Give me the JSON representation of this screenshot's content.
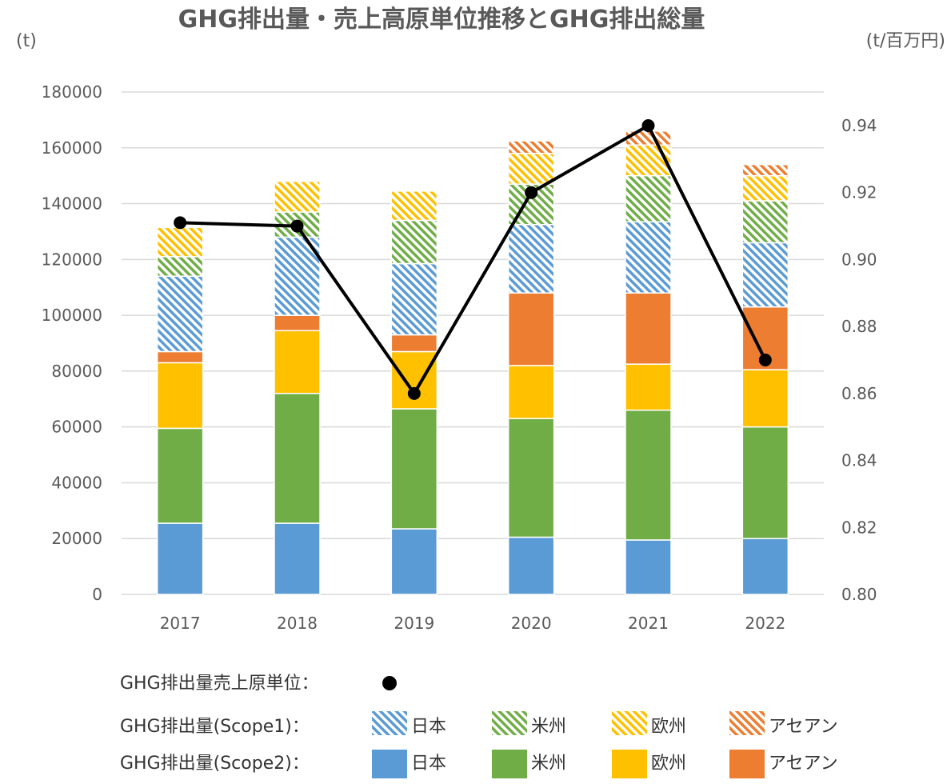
{
  "chart_data": {
    "type": "bar",
    "title": "GHG排出量・売上高原単位推移とGHG排出総量",
    "left_axis_unit": "(t)",
    "right_axis_unit": "(t/百万円)",
    "categories": [
      "2017",
      "2018",
      "2019",
      "2020",
      "2021",
      "2022"
    ],
    "left_ylim": [
      0,
      180000
    ],
    "left_ticks": [
      "0",
      "20000",
      "40000",
      "60000",
      "80000",
      "100000",
      "120000",
      "140000",
      "160000",
      "180000"
    ],
    "right_ylim": [
      0.8,
      0.94
    ],
    "right_ticks": [
      "0.80",
      "0.82",
      "0.84",
      "0.86",
      "0.88",
      "0.90",
      "0.92",
      "0.94"
    ],
    "grid": true,
    "stack_order": [
      "scope2_japan",
      "scope2_americas",
      "scope2_europe",
      "scope2_asean",
      "scope1_japan",
      "scope1_americas",
      "scope1_europe",
      "scope1_asean"
    ],
    "series": [
      {
        "key": "scope2_japan",
        "group": "GHG排出量(Scope2)",
        "name": "日本",
        "color": "#5B9BD5",
        "pattern": "solid",
        "values": [
          25500,
          25500,
          23500,
          20500,
          19500,
          20000
        ]
      },
      {
        "key": "scope2_americas",
        "group": "GHG排出量(Scope2)",
        "name": "米州",
        "color": "#70AD47",
        "pattern": "solid",
        "values": [
          34000,
          46500,
          43000,
          42500,
          46500,
          40000
        ]
      },
      {
        "key": "scope2_europe",
        "group": "GHG排出量(Scope2)",
        "name": "欧州",
        "color": "#FFC000",
        "pattern": "solid",
        "values": [
          23500,
          22500,
          20500,
          19000,
          16500,
          20500
        ]
      },
      {
        "key": "scope2_asean",
        "group": "GHG排出量(Scope2)",
        "name": "アセアン",
        "color": "#ED7D31",
        "pattern": "solid",
        "values": [
          4000,
          5500,
          6000,
          26000,
          25500,
          22500
        ]
      },
      {
        "key": "scope1_japan",
        "group": "GHG排出量(Scope1)",
        "name": "日本",
        "color": "#5B9BD5",
        "pattern": "hatch",
        "values": [
          27000,
          28000,
          25500,
          24500,
          25500,
          23000
        ]
      },
      {
        "key": "scope1_americas",
        "group": "GHG排出量(Scope1)",
        "name": "米州",
        "color": "#70AD47",
        "pattern": "hatch",
        "values": [
          7000,
          9000,
          15500,
          14500,
          16500,
          15000
        ]
      },
      {
        "key": "scope1_europe",
        "group": "GHG排出量(Scope1)",
        "name": "欧州",
        "color": "#FFC000",
        "pattern": "hatch",
        "values": [
          10500,
          11000,
          10500,
          11000,
          11000,
          9000
        ]
      },
      {
        "key": "scope1_asean",
        "group": "GHG排出量(Scope1)",
        "name": "アセアン",
        "color": "#ED7D31",
        "pattern": "hatch",
        "values": [
          0,
          0,
          0,
          4500,
          5000,
          4000
        ]
      }
    ],
    "line": {
      "name": "GHG排出量売上原単位",
      "axis": "right",
      "color": "#000000",
      "values": [
        0.911,
        0.91,
        0.86,
        0.92,
        0.94,
        0.87
      ]
    }
  },
  "legend": {
    "intensity_label": "GHG排出量売上原単位：",
    "scope1_label": "GHG排出量(Scope1)：",
    "scope2_label": "GHG排出量(Scope2)：",
    "regions": [
      "日本",
      "米州",
      "欧州",
      "アセアン"
    ]
  }
}
